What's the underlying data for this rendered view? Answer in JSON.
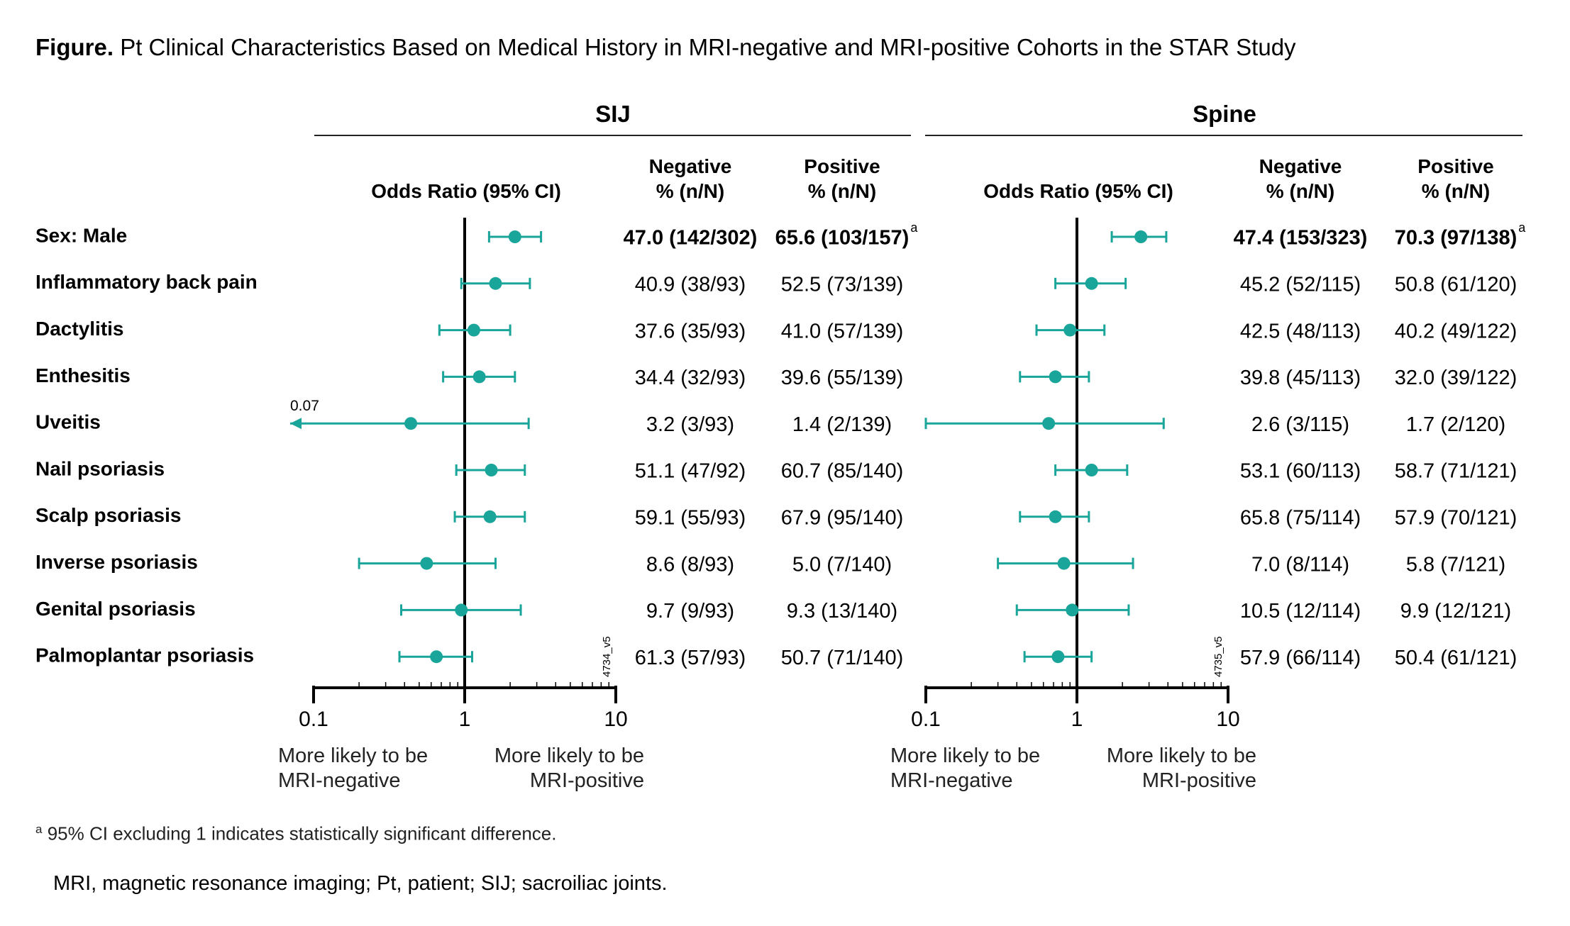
{
  "title": {
    "prefix": "Figure.",
    "text": "Pt Clinical Characteristics Based on Medical History in MRI-negative and MRI-positive Cohorts in the STAR Study"
  },
  "footnote": {
    "marker": "a",
    "text": "95% CI excluding 1 indicates statistically significant difference."
  },
  "abbreviations": "MRI, magnetic resonance imaging; Pt, patient; SIJ; sacroiliac joints.",
  "colors": {
    "marker": "#1aa59a",
    "axis": "#000000"
  },
  "chart_data": [
    {
      "type": "forest",
      "title": "SIJ",
      "axis_label": "Odds Ratio (95% CI)",
      "scale": "log",
      "xlim": [
        0.1,
        10
      ],
      "ticks": [
        0.1,
        1,
        10
      ],
      "tick_labels": [
        "0.1",
        "1",
        "10"
      ],
      "reference_line": 1,
      "direction_left": [
        "More likely to be",
        "MRI-negative"
      ],
      "direction_right": [
        "More likely to be",
        "MRI-positive"
      ],
      "col_negative": [
        "Negative",
        "% (n/N)"
      ],
      "col_positive": [
        "Positive",
        "% (n/N)"
      ],
      "version_code": "4734_v5",
      "rows": [
        {
          "label": "Sex: Male",
          "or": 2.15,
          "lo": 1.45,
          "hi": 3.2,
          "negative": "47.0 (142/302)",
          "positive": "65.6 (103/157)",
          "sup": "a",
          "bold": true
        },
        {
          "label": "Inflammatory back pain",
          "or": 1.6,
          "lo": 0.95,
          "hi": 2.7,
          "negative": "40.9 (38/93)",
          "positive": "52.5 (73/139)"
        },
        {
          "label": "Dactylitis",
          "or": 1.15,
          "lo": 0.68,
          "hi": 2.0,
          "negative": "37.6 (35/93)",
          "positive": "41.0 (57/139)"
        },
        {
          "label": "Enthesitis",
          "or": 1.25,
          "lo": 0.72,
          "hi": 2.15,
          "negative": "34.4 (32/93)",
          "positive": "39.6 (55/139)"
        },
        {
          "label": "Uveitis",
          "or": 0.44,
          "lo": 0.07,
          "hi": 2.65,
          "lo_arrow": true,
          "lo_annotation": "0.07",
          "negative": "3.2 (3/93)",
          "positive": "1.4 (2/139)"
        },
        {
          "label": "Nail psoriasis",
          "or": 1.5,
          "lo": 0.88,
          "hi": 2.5,
          "negative": "51.1 (47/92)",
          "positive": "60.7 (85/140)"
        },
        {
          "label": "Scalp psoriasis",
          "or": 1.47,
          "lo": 0.86,
          "hi": 2.5,
          "negative": "59.1 (55/93)",
          "positive": "67.9 (95/140)"
        },
        {
          "label": "Inverse psoriasis",
          "or": 0.56,
          "lo": 0.2,
          "hi": 1.6,
          "negative": "8.6 (8/93)",
          "positive": "5.0 (7/140)"
        },
        {
          "label": "Genital psoriasis",
          "or": 0.95,
          "lo": 0.38,
          "hi": 2.35,
          "negative": "9.7 (9/93)",
          "positive": "9.3 (13/140)"
        },
        {
          "label": "Palmoplantar psoriasis",
          "or": 0.65,
          "lo": 0.37,
          "hi": 1.12,
          "negative": "61.3 (57/93)",
          "positive": "50.7 (71/140)"
        }
      ]
    },
    {
      "type": "forest",
      "title": "Spine",
      "axis_label": "Odds Ratio (95% CI)",
      "scale": "log",
      "xlim": [
        0.1,
        10
      ],
      "ticks": [
        0.1,
        1,
        10
      ],
      "tick_labels": [
        "0.1",
        "1",
        "10"
      ],
      "reference_line": 1,
      "direction_left": [
        "More likely to be",
        "MRI-negative"
      ],
      "direction_right": [
        "More likely to be",
        "MRI-positive"
      ],
      "col_negative": [
        "Negative",
        "% (n/N)"
      ],
      "col_positive": [
        "Positive",
        "% (n/N)"
      ],
      "version_code": "4735_v5",
      "rows": [
        {
          "label": "Sex: Male",
          "or": 2.65,
          "lo": 1.7,
          "hi": 3.9,
          "negative": "47.4 (153/323)",
          "positive": "70.3 (97/138)",
          "sup": "a",
          "bold": true
        },
        {
          "label": "Inflammatory back pain",
          "or": 1.25,
          "lo": 0.72,
          "hi": 2.1,
          "negative": "45.2 (52/115)",
          "positive": "50.8 (61/120)"
        },
        {
          "label": "Dactylitis",
          "or": 0.9,
          "lo": 0.54,
          "hi": 1.52,
          "negative": "42.5 (48/113)",
          "positive": "40.2 (49/122)"
        },
        {
          "label": "Enthesitis",
          "or": 0.72,
          "lo": 0.42,
          "hi": 1.2,
          "negative": "39.8 (45/113)",
          "positive": "32.0 (39/122)"
        },
        {
          "label": "Uveitis",
          "or": 0.65,
          "lo": 0.1,
          "hi": 3.75,
          "negative": "2.6 (3/115)",
          "positive": "1.7 (2/120)"
        },
        {
          "label": "Nail psoriasis",
          "or": 1.25,
          "lo": 0.72,
          "hi": 2.15,
          "negative": "53.1 (60/113)",
          "positive": "58.7 (71/121)"
        },
        {
          "label": "Scalp psoriasis",
          "or": 0.72,
          "lo": 0.42,
          "hi": 1.2,
          "negative": "65.8 (75/114)",
          "positive": "57.9 (70/121)"
        },
        {
          "label": "Inverse psoriasis",
          "or": 0.82,
          "lo": 0.3,
          "hi": 2.35,
          "negative": "7.0 (8/114)",
          "positive": "5.8 (7/121)"
        },
        {
          "label": "Genital psoriasis",
          "or": 0.93,
          "lo": 0.4,
          "hi": 2.2,
          "negative": "10.5 (12/114)",
          "positive": "9.9 (12/121)"
        },
        {
          "label": "Palmoplantar psoriasis",
          "or": 0.75,
          "lo": 0.45,
          "hi": 1.25,
          "negative": "57.9 (66/114)",
          "positive": "50.4 (61/121)"
        }
      ]
    }
  ]
}
